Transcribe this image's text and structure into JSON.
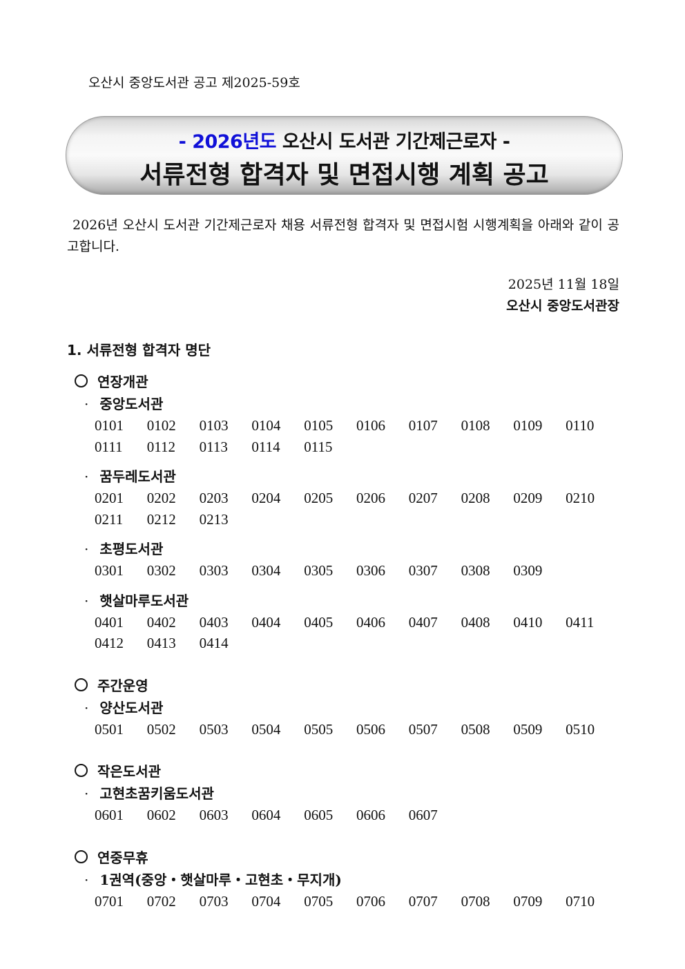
{
  "notice_number": "오산시 중앙도서관 공고 제2025-59호",
  "banner": {
    "line1_prefix": "- ",
    "line1_year": "2026년도",
    "line1_rest": " 오산시 도서관 기간제근로자 -",
    "line2": "서류전형 합격자 및 면접시행 계획 공고",
    "accent_color": "#1010d8"
  },
  "intro": "2026년 오산시 도서관 기간제근로자 채용 서류전형 합격자 및 면접시험 시행계획을 아래와 같이 공고합니다.",
  "date": "2025년 11월 18일",
  "signer": "오산시 중앙도서관장",
  "section": {
    "title": "1. 서류전형 합격자 명단",
    "categories": [
      {
        "title": "연장개관",
        "libraries": [
          {
            "name": "중앙도서관",
            "numbers": [
              "0101",
              "0102",
              "0103",
              "0104",
              "0105",
              "0106",
              "0107",
              "0108",
              "0109",
              "0110",
              "0111",
              "0112",
              "0113",
              "0114",
              "0115"
            ]
          },
          {
            "name": "꿈두레도서관",
            "numbers": [
              "0201",
              "0202",
              "0203",
              "0204",
              "0205",
              "0206",
              "0207",
              "0208",
              "0209",
              "0210",
              "0211",
              "0212",
              "0213"
            ]
          },
          {
            "name": "초평도서관",
            "numbers": [
              "0301",
              "0302",
              "0303",
              "0304",
              "0305",
              "0306",
              "0307",
              "0308",
              "0309"
            ]
          },
          {
            "name": "햇살마루도서관",
            "numbers": [
              "0401",
              "0402",
              "0403",
              "0404",
              "0405",
              "0406",
              "0407",
              "0408",
              "0410",
              "0411",
              "0412",
              "0413",
              "0414"
            ]
          }
        ]
      },
      {
        "title": "주간운영",
        "libraries": [
          {
            "name": "양산도서관",
            "numbers": [
              "0501",
              "0502",
              "0503",
              "0504",
              "0505",
              "0506",
              "0507",
              "0508",
              "0509",
              "0510"
            ]
          }
        ]
      },
      {
        "title": "작은도서관",
        "libraries": [
          {
            "name": "고현초꿈키움도서관",
            "numbers": [
              "0601",
              "0602",
              "0603",
              "0604",
              "0605",
              "0606",
              "0607"
            ]
          }
        ]
      },
      {
        "title": "연중무휴",
        "libraries": [
          {
            "name": "1권역(중앙・햇살마루・고현초・무지개)",
            "numbers": [
              "0701",
              "0702",
              "0703",
              "0704",
              "0705",
              "0706",
              "0707",
              "0708",
              "0709",
              "0710"
            ]
          }
        ]
      }
    ]
  }
}
